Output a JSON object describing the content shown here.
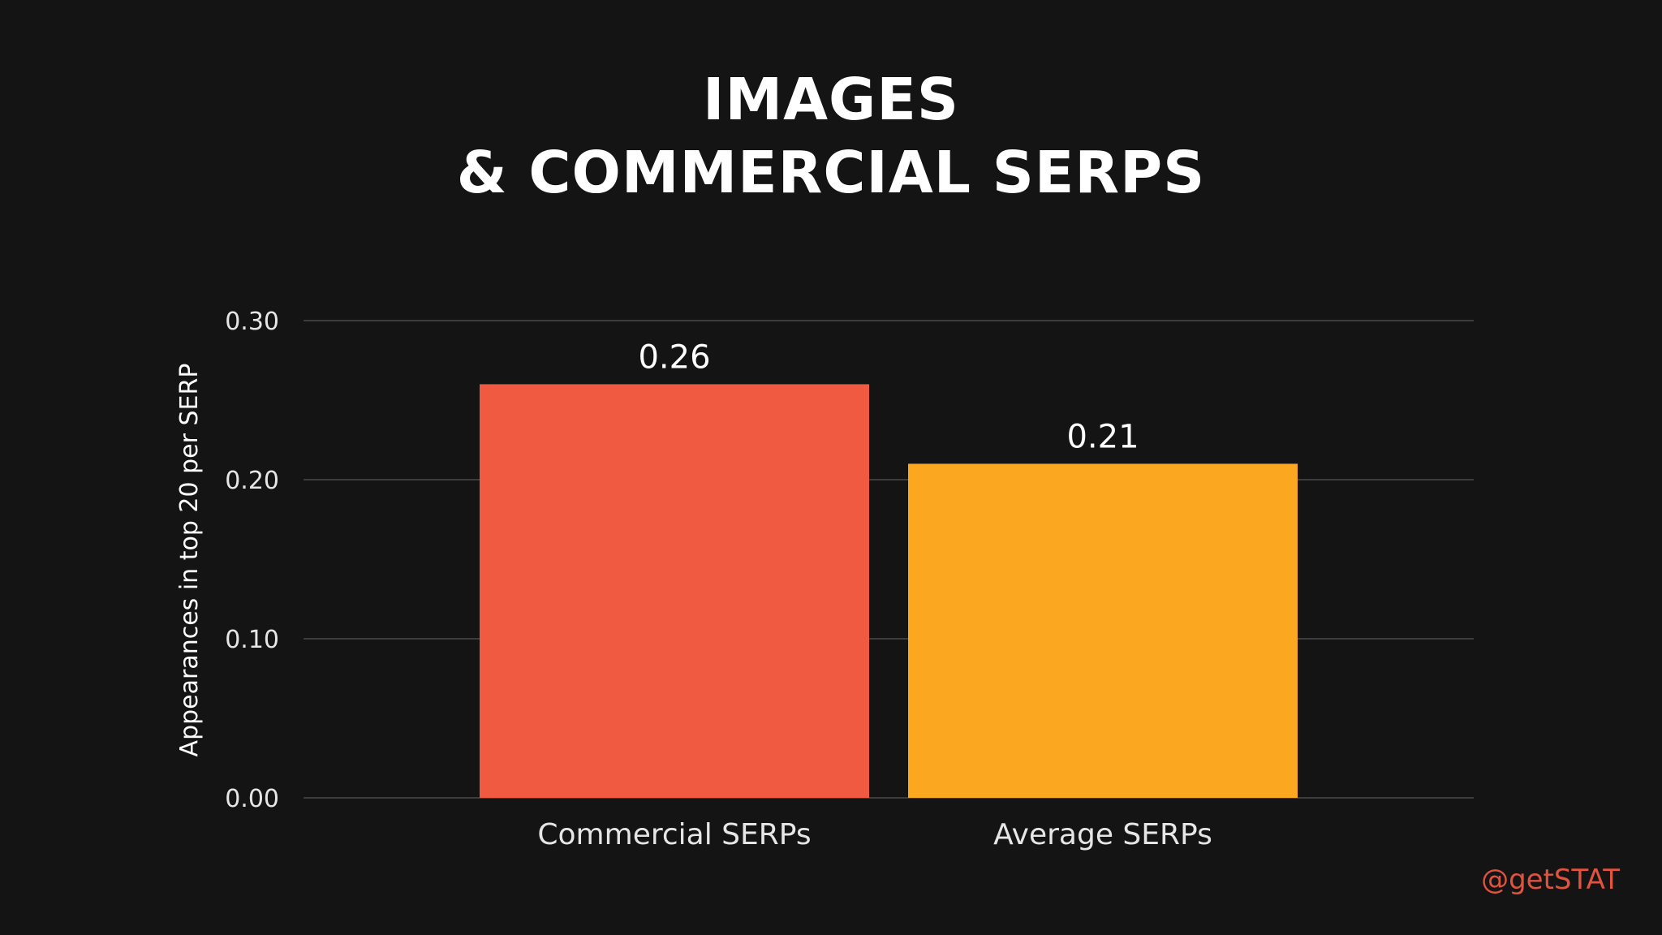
{
  "chart_data": {
    "type": "bar",
    "title_lines": [
      "IMAGES",
      "& COMMERCIAL SERPS"
    ],
    "categories": [
      "Commercial SERPs",
      "Average SERPs"
    ],
    "values": [
      0.26,
      0.21
    ],
    "value_labels": [
      "0.26",
      "0.21"
    ],
    "bar_colors": [
      "#f05a40",
      "#fba71f"
    ],
    "ylabel": "Appearances in top 20 per SERP",
    "xlabel": "",
    "ylim": [
      0,
      0.3
    ],
    "yticks": [
      0.0,
      0.1,
      0.2,
      0.3
    ],
    "ytick_labels": [
      "0.00",
      "0.10",
      "0.20",
      "0.30"
    ],
    "grid": true
  },
  "colors": {
    "background": "#141414",
    "text": "#ffffff",
    "tick_text": "#e6e6e6",
    "gridline": "#4a4a4a",
    "watermark": "#e0543f"
  },
  "watermark": "@getSTAT"
}
